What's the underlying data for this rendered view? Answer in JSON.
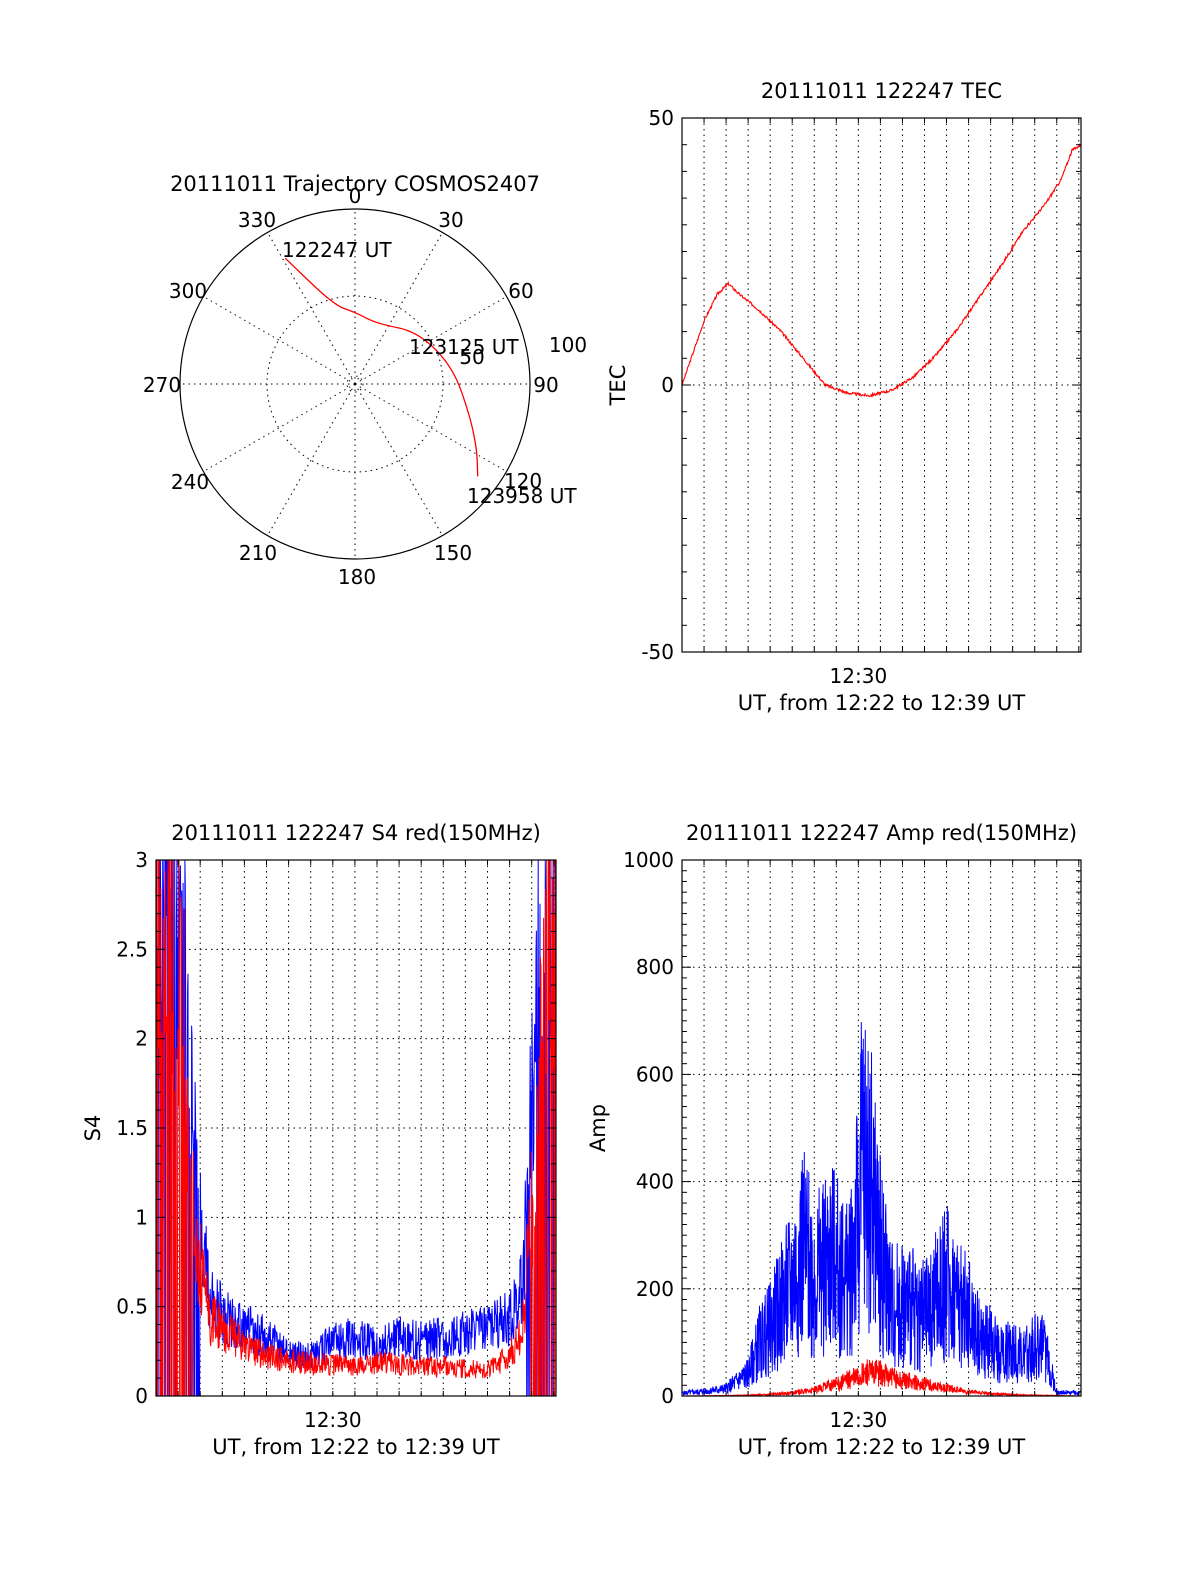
{
  "chart_data": [
    {
      "type": "polar",
      "title": "20111011 Trajectory COSMOS2407",
      "angle_labels": [
        "0",
        "30",
        "60",
        "90",
        "120",
        "150",
        "180",
        "210",
        "240",
        "270",
        "300",
        "330"
      ],
      "radius_ring_labels": [
        "50",
        "100"
      ],
      "series": [
        {
          "color": "#ff0000",
          "points": [
            {
              "azimuth": 331,
              "elevation": 16
            },
            {
              "azimuth": 345,
              "elevation": 48
            },
            {
              "azimuth": 0,
              "elevation": 53
            },
            {
              "azimuth": 20,
              "elevation": 57
            },
            {
              "azimuth": 50,
              "elevation": 48
            },
            {
              "azimuth": 80,
              "elevation": 39
            },
            {
              "azimuth": 105,
              "elevation": 29
            },
            {
              "azimuth": 118,
              "elevation": 19
            },
            {
              "azimuth": 127,
              "elevation": 11
            }
          ]
        }
      ],
      "annotations": [
        "122247 UT",
        "123125 UT",
        "123958 UT"
      ]
    },
    {
      "type": "line",
      "title": "20111011 122247 TEC",
      "xlabel": "UT, from 12:22 to 12:39 UT",
      "ylabel": "TEC",
      "xtick_labels": [
        "12:30"
      ],
      "ytick_labels": [
        "-50",
        "0",
        "50"
      ],
      "xlim_minutes": [
        22.0,
        40.1
      ],
      "ylim": [
        -50,
        50
      ],
      "series": [
        {
          "color": "#ff0000",
          "x": [
            22.0,
            22.5,
            23.0,
            23.6,
            24.1,
            24.6,
            25.5,
            26.5,
            27.5,
            28.5,
            29.5,
            30.5,
            31.5,
            32.5,
            33.5,
            34.5,
            35.5,
            36.5,
            37.5,
            38.5,
            39.2,
            39.7,
            40.1
          ],
          "y": [
            0,
            6,
            12,
            17,
            19,
            17,
            14,
            10,
            5,
            0,
            -1.5,
            -2,
            -1,
            1.5,
            5.5,
            10.5,
            16.5,
            22.5,
            29,
            34,
            38.5,
            44,
            45
          ]
        }
      ]
    },
    {
      "type": "line",
      "title": "20111011 122247 S4 red(150MHz)",
      "xlabel": "UT, from 12:22 to 12:39 UT",
      "ylabel": "S4",
      "xtick_labels": [
        "12:30"
      ],
      "ytick_labels": [
        "0",
        "0.5",
        "1",
        "1.5",
        "2",
        "2.5",
        "3"
      ],
      "xlim_minutes": [
        22.0,
        40.1
      ],
      "ylim": [
        0,
        3
      ],
      "series": [
        {
          "color": "#0000ff",
          "x": [
            22.0,
            22.6,
            23.2,
            23.8,
            24.4,
            25.0,
            26.0,
            27.0,
            28.0,
            29.0,
            30.0,
            31.0,
            32.0,
            33.0,
            34.0,
            35.0,
            36.0,
            37.0,
            38.0,
            38.6,
            39.0,
            39.6,
            40.1
          ],
          "y": [
            3.0,
            2.6,
            2.3,
            1.2,
            0.5,
            0.42,
            0.35,
            0.3,
            0.22,
            0.2,
            0.28,
            0.3,
            0.26,
            0.3,
            0.28,
            0.3,
            0.32,
            0.35,
            0.4,
            0.55,
            1.5,
            2.6,
            3.0
          ]
        },
        {
          "color": "#ff0000",
          "x": [
            22.0,
            22.6,
            23.2,
            23.8,
            24.4,
            25.0,
            26.0,
            27.0,
            28.0,
            29.0,
            30.0,
            31.0,
            32.0,
            33.0,
            34.0,
            35.0,
            36.0,
            37.0,
            38.0,
            38.6,
            39.0,
            39.6,
            40.1
          ],
          "y": [
            2.6,
            2.2,
            2.0,
            0.8,
            0.4,
            0.35,
            0.25,
            0.2,
            0.18,
            0.17,
            0.16,
            0.15,
            0.17,
            0.16,
            0.15,
            0.15,
            0.14,
            0.13,
            0.2,
            0.35,
            1.0,
            2.0,
            2.5
          ]
        }
      ]
    },
    {
      "type": "line",
      "title": "20111011 122247 Amp red(150MHz)",
      "xlabel": "UT, from 12:22 to 12:39 UT",
      "ylabel": "Amp",
      "xtick_labels": [
        "12:30"
      ],
      "ytick_labels": [
        "0",
        "200",
        "400",
        "600",
        "800",
        "1000"
      ],
      "xlim_minutes": [
        22.0,
        40.1
      ],
      "ylim": [
        0,
        1000
      ],
      "series": [
        {
          "color": "#0000ff",
          "x": [
            22.0,
            23.0,
            24.0,
            25.0,
            25.5,
            26.0,
            27.0,
            27.5,
            28.0,
            28.8,
            29.5,
            30.0,
            30.2,
            30.6,
            31.0,
            31.5,
            32.0,
            33.0,
            34.0,
            35.0,
            35.5,
            36.0,
            36.5,
            37.0,
            37.5,
            38.0,
            38.5,
            39.0,
            40.1
          ],
          "y": [
            8,
            12,
            20,
            60,
            140,
            180,
            300,
            400,
            310,
            370,
            300,
            480,
            640,
            550,
            380,
            250,
            250,
            210,
            300,
            220,
            160,
            140,
            110,
            130,
            100,
            140,
            120,
            10,
            8
          ]
        },
        {
          "color": "#ff0000",
          "x": [
            22.0,
            24.0,
            25.0,
            26.0,
            27.0,
            28.0,
            29.0,
            30.0,
            30.5,
            31.0,
            32.0,
            33.0,
            34.0,
            35.0,
            36.0,
            37.0,
            38.0,
            39.0,
            40.1
          ],
          "y": [
            0,
            1,
            2,
            4,
            8,
            15,
            30,
            50,
            60,
            55,
            40,
            30,
            20,
            10,
            6,
            3,
            2,
            1,
            0
          ]
        }
      ]
    }
  ]
}
